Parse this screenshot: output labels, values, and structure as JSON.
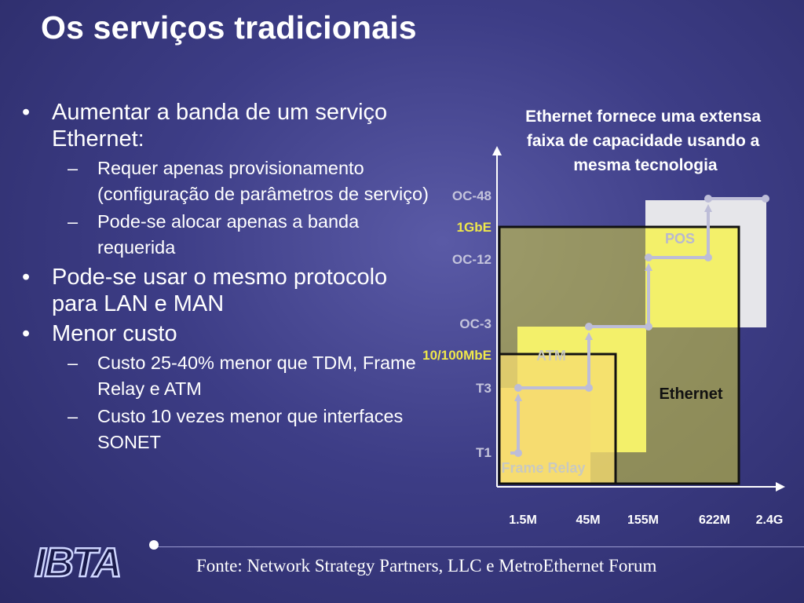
{
  "slide": {
    "title": "Os serviços tradicionais",
    "bullets": [
      {
        "text": "Aumentar a banda de um serviço Ethernet:",
        "sub": [
          "Requer apenas provisionamento (configuração de parâmetros de serviço)",
          "Pode-se alocar apenas a banda requerida"
        ]
      },
      {
        "text": "Pode-se usar o mesmo protocolo para LAN e MAN",
        "sub": []
      },
      {
        "text": "Menor custo",
        "sub": [
          "Custo 25-40% menor que TDM, Frame Relay e ATM",
          "Custo 10 vezes menor que interfaces SONET"
        ]
      }
    ],
    "source": "Fonte: Network Strategy Partners, LLC e MetroEthernet Forum",
    "logo_text": "IBTA"
  },
  "diagram": {
    "caption_lines": [
      "Ethernet fornece uma extensa",
      "faixa de capacidade usando a",
      "mesma tecnologia"
    ],
    "y_labels": [
      "OC-48",
      "1GbE",
      "OC-12",
      "OC-3",
      "10/100MbE",
      "T3",
      "T1"
    ],
    "x_labels": [
      "1.5M",
      "45M",
      "155M",
      "622M",
      "2.4G"
    ],
    "region_labels": {
      "pos": "POS",
      "atm": "ATM",
      "frame_relay": "Frame Relay",
      "ethernet": "Ethernet"
    }
  }
}
